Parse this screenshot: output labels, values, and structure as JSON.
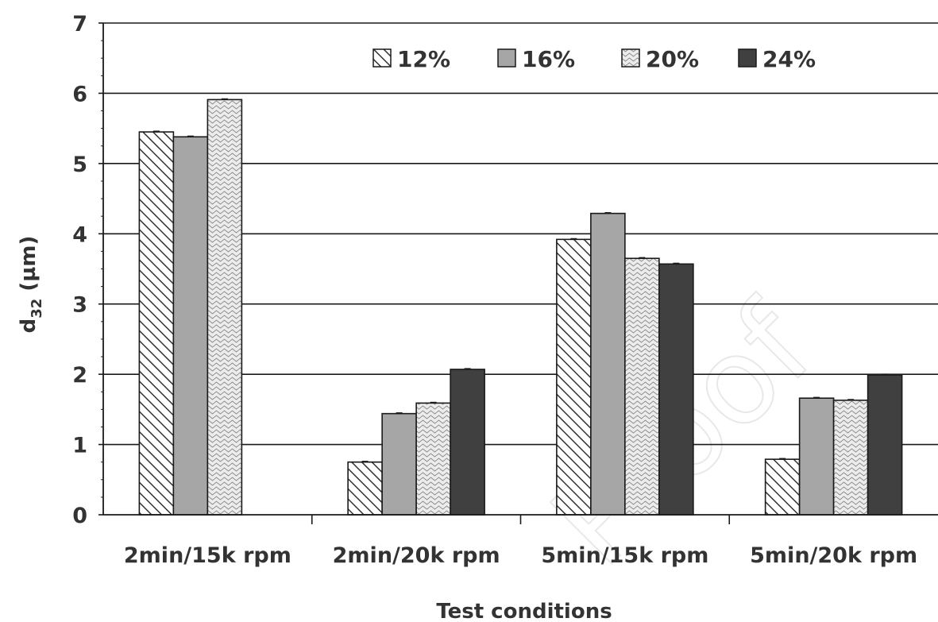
{
  "chart_data": {
    "type": "bar",
    "title": "",
    "xlabel": "Test conditions",
    "ylabel": "d32 (µm)",
    "ylabel_main": "d",
    "ylabel_sub": "32",
    "ylabel_unit": " (µm)",
    "ylim": [
      0,
      7
    ],
    "yticks": [
      "0",
      "1",
      "2",
      "3",
      "4",
      "5",
      "6",
      "7"
    ],
    "grid": "horizontal",
    "legend_position": "top",
    "categories": [
      "2min/15k rpm",
      "2min/20k rpm",
      "5min/15k rpm",
      "5min/20k rpm"
    ],
    "series": [
      {
        "name": "12%",
        "pattern": "diagonal-hatch",
        "color": "#ffffff",
        "values": [
          5.45,
          0.75,
          3.92,
          0.79
        ]
      },
      {
        "name": "16%",
        "pattern": "solid",
        "color": "#a6a6a6",
        "values": [
          5.38,
          1.44,
          4.29,
          1.66
        ]
      },
      {
        "name": "20%",
        "pattern": "wave",
        "color": "#dcdcdc",
        "values": [
          5.91,
          1.59,
          3.65,
          1.63
        ]
      },
      {
        "name": "24%",
        "pattern": "solid",
        "color": "#404040",
        "values": [
          null,
          2.07,
          3.57,
          1.99
        ]
      }
    ]
  },
  "watermark": "Proof"
}
